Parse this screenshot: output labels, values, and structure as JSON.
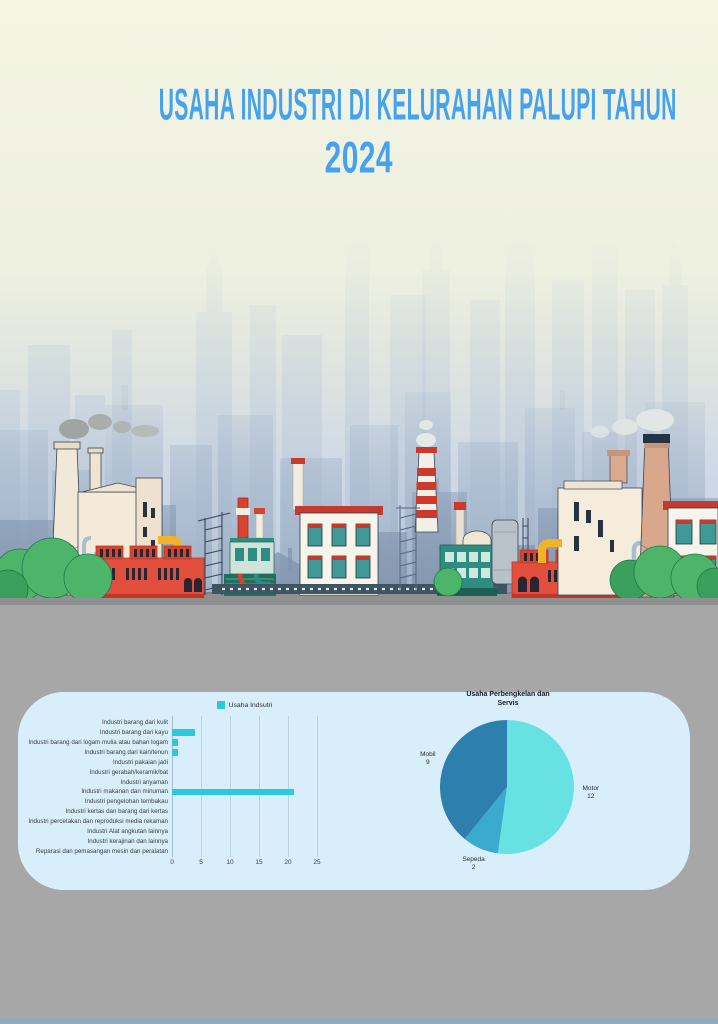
{
  "header": {
    "title_line1": "USAHA INDUSTRI DI KELURAHAN PALUPI TAHUN",
    "title_line2": "2024"
  },
  "bar_panel": {
    "legend_label": "Usaha Indsutri"
  },
  "pie_panel": {
    "title_line1": "Usaha Perbengkelan dan",
    "title_line2": "Servis"
  },
  "colors": {
    "title_blue": "#45a2ee",
    "background_cream": "#f3f4e2",
    "section_gray": "#a7a7a7",
    "card_bg": "#d9eefb",
    "bar_cyan": "#2bc9dd",
    "pie_motor": "#68e1e3",
    "pie_sepeda": "#3aabce",
    "pie_mobil": "#2d80ae"
  },
  "chart_data": [
    {
      "type": "bar",
      "orientation": "horizontal",
      "legend": [
        "Usaha Indsutri"
      ],
      "categories": [
        "Industri barang dari kulit",
        "Industri barang dari kayu",
        "Industri barang dari logam mulia atau bahan logam",
        "Industri barang dari kain/tenun",
        "Industri pakaian jadi",
        "Industri gerabah/keramik/bat",
        "Industri anyaman",
        "Industri makanan dan minuman",
        "Industri pengelohan tembakau",
        "Industri kertas dan barang dari kertas",
        "Industri percetakan dan reproduksi media rekaman",
        "Industri Alat angkutan lainnya",
        "Industri kerajinan dan lainnya",
        "Reparasi dan pemasangan mesin dan peralatan"
      ],
      "values": [
        0,
        4,
        1,
        1,
        0,
        0,
        0,
        21,
        0,
        0,
        0,
        0,
        0,
        0
      ],
      "bar_color": "#2bc9dd",
      "xlim": [
        0,
        25
      ],
      "x_ticks": [
        0,
        5,
        10,
        15,
        20,
        25
      ],
      "grid": true
    },
    {
      "type": "pie",
      "title": "Usaha Perbengkelan dan Servis",
      "slices": [
        {
          "label": "Motor",
          "value": 12,
          "color": "#68e1e3"
        },
        {
          "label": "Sepeda",
          "value": 2,
          "color": "#3aabce"
        },
        {
          "label": "Mobil",
          "value": 9,
          "color": "#2d80ae"
        }
      ],
      "start_angle_deg": 0,
      "direction": "clockwise"
    }
  ]
}
